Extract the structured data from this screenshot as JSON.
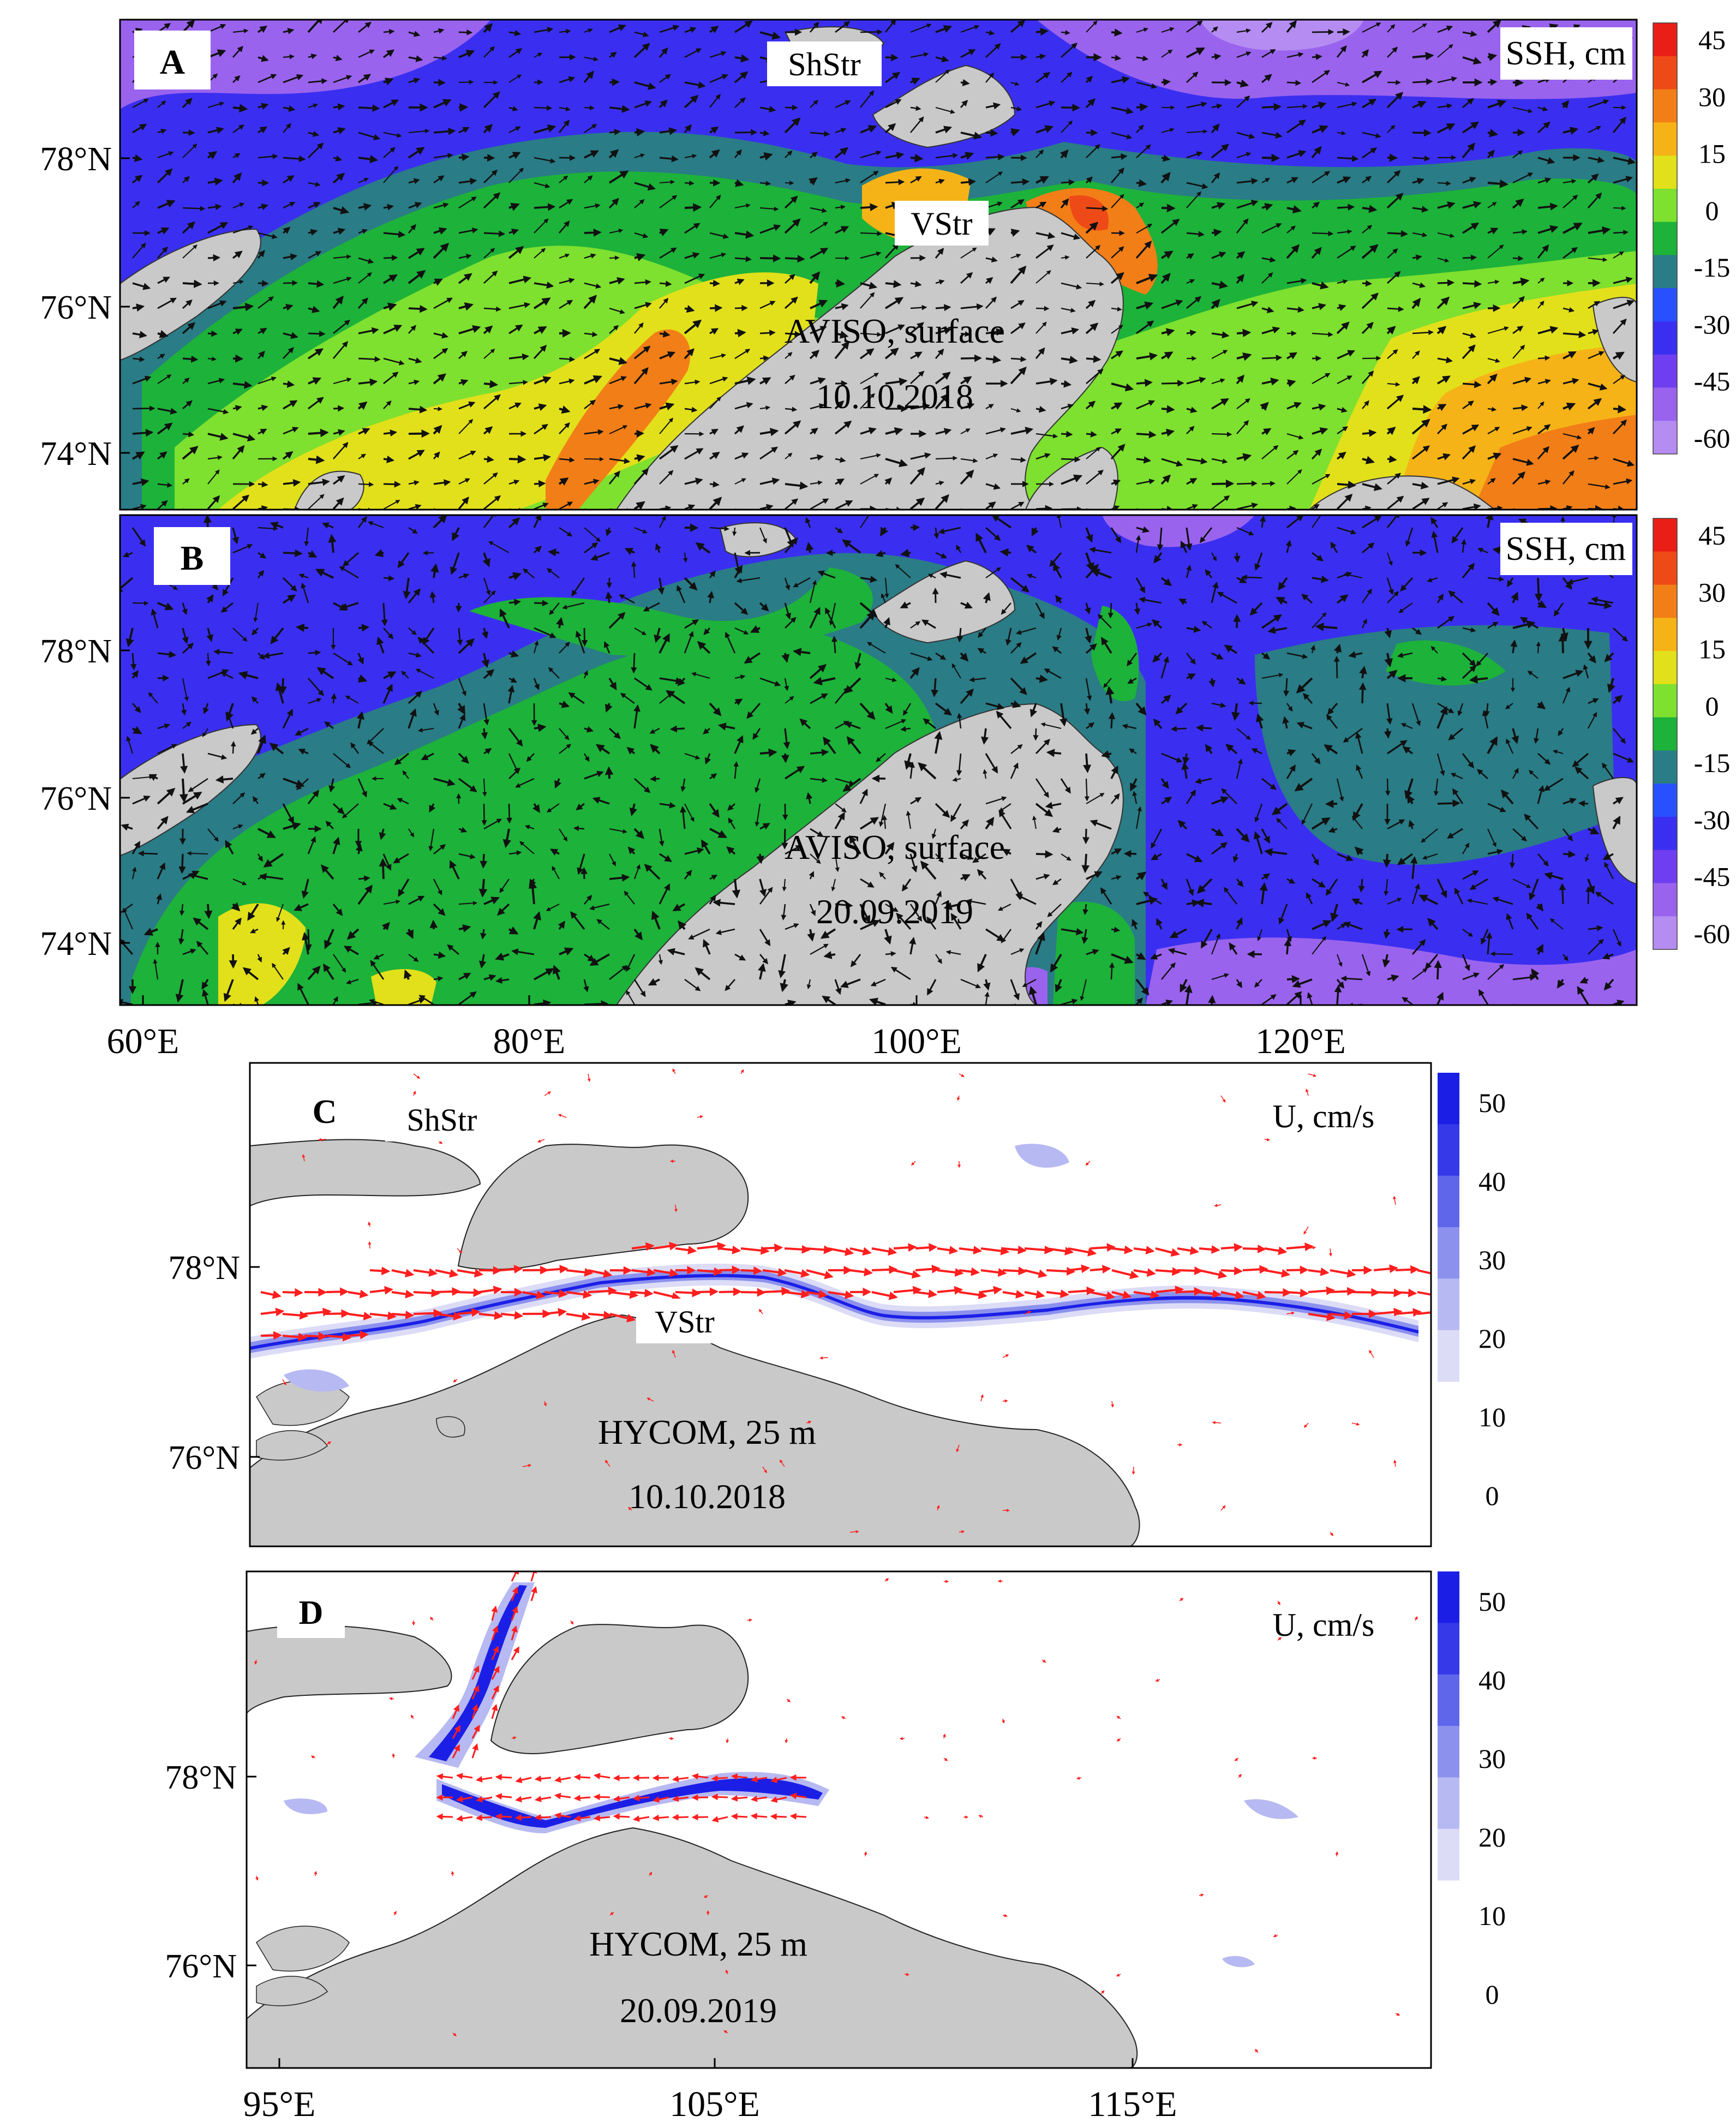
{
  "colors": {
    "land": "#c9c9c9",
    "ssh_scale": [
      "#b58cf2",
      "#9a63ee",
      "#6f3ef0",
      "#3a2ff0",
      "#2850ff",
      "#2a7c86",
      "#1db23a",
      "#7ee02f",
      "#e2e01a",
      "#f6b317",
      "#f27e17",
      "#ee4a17",
      "#e91e16"
    ],
    "u_scale": [
      "#dcdcf7",
      "#b7b9f2",
      "#8c91ee",
      "#5f66ea",
      "#3539e8",
      "#1b1fe6"
    ],
    "arrow_surface": "#111111",
    "arrow_depth": "#ff1e1e"
  },
  "panels": [
    {
      "id": "A",
      "label": "A",
      "title_line1": "AVISO, surface",
      "title_line2": "10.10.2018",
      "colorbar_title": "SSH, cm",
      "colorbar_ticks": [
        "45",
        "30",
        "15",
        "0",
        "-15",
        "-30",
        "-45",
        "-60"
      ],
      "lat_labels": [
        "78°N",
        "76°N",
        "74°N"
      ],
      "place_labels": [
        "ShStr",
        "VStr"
      ]
    },
    {
      "id": "B",
      "label": "B",
      "title_line1": "AVISO, surface",
      "title_line2": "20.09.2019",
      "colorbar_title": "SSH, cm",
      "colorbar_ticks": [
        "45",
        "30",
        "15",
        "0",
        "-15",
        "-30",
        "-45",
        "-60"
      ],
      "lat_labels": [
        "78°N",
        "76°N",
        "74°N"
      ],
      "lon_labels": [
        "60°E",
        "80°E",
        "100°E",
        "120°E"
      ]
    },
    {
      "id": "C",
      "label": "C",
      "title_line1": "HYCOM, 25 m",
      "title_line2": "10.10.2018",
      "colorbar_title": "U, cm/s",
      "colorbar_ticks": [
        "50",
        "40",
        "30",
        "20",
        "10",
        "0"
      ],
      "lat_labels": [
        "78°N",
        "76°N"
      ],
      "place_labels": [
        "ShStr",
        "VStr"
      ]
    },
    {
      "id": "D",
      "label": "D",
      "title_line1": "HYCOM, 25 m",
      "title_line2": "20.09.2019",
      "colorbar_title": "U, cm/s",
      "colorbar_ticks": [
        "50",
        "40",
        "30",
        "20",
        "10",
        "0"
      ],
      "lat_labels": [
        "78°N",
        "76°N"
      ],
      "lon_labels": [
        "95°E",
        "105°E",
        "115°E"
      ]
    }
  ]
}
